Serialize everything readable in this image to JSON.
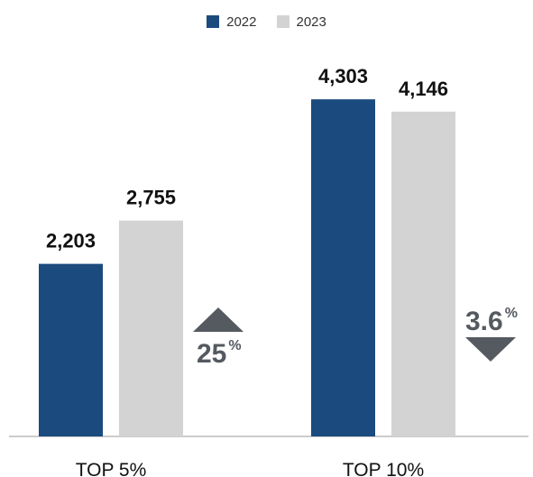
{
  "chart_data": {
    "type": "bar",
    "title": "",
    "xlabel": "",
    "ylabel": "",
    "categories": [
      "TOP 5%",
      "TOP 10%"
    ],
    "series": [
      {
        "name": "2022",
        "values": [
          2203,
          4303
        ],
        "labels": [
          "2,203",
          "4,303"
        ]
      },
      {
        "name": "2023",
        "values": [
          2755,
          4146
        ],
        "labels": [
          "2,755",
          "4,146"
        ]
      }
    ],
    "ylim": [
      0,
      4650
    ],
    "grid": false,
    "legend": "top-center",
    "annotations": [
      {
        "category": "TOP 5%",
        "direction": "up",
        "value": "25",
        "suffix": "%"
      },
      {
        "category": "TOP 10%",
        "direction": "down",
        "value": "3.6",
        "suffix": "%"
      }
    ],
    "colors": {
      "2022": "#1b4a7e",
      "2023": "#d3d3d3",
      "annotation": "#555a60",
      "axis": "#999999"
    }
  }
}
